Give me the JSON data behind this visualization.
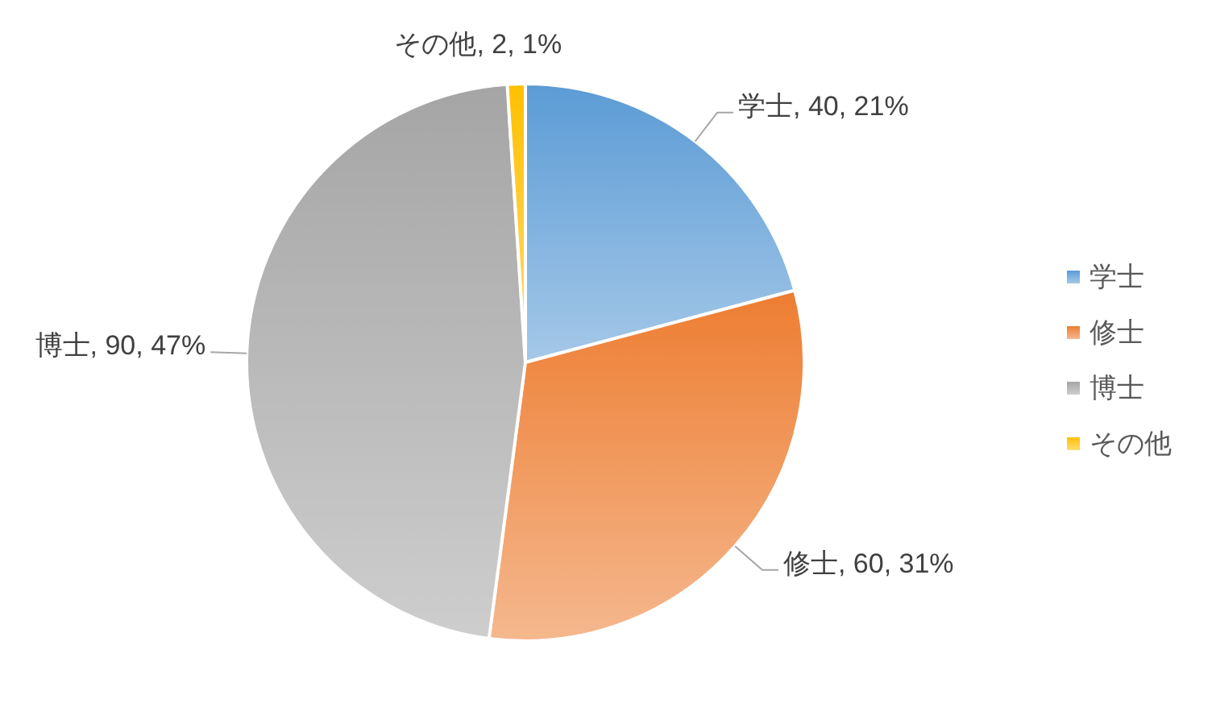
{
  "chart_data": {
    "type": "pie",
    "categories": [
      "学士",
      "修士",
      "博士",
      "その他"
    ],
    "values": [
      40,
      60,
      90,
      2
    ],
    "colors": [
      "#5b9bd5",
      "#ed7d31",
      "#a5a5a5",
      "#ffc000"
    ],
    "value_labels": [
      "学士, 40, 21%",
      "修士, 60, 31%",
      "博士, 90, 47%",
      "その他, 2, 1%"
    ],
    "legend": "right"
  }
}
